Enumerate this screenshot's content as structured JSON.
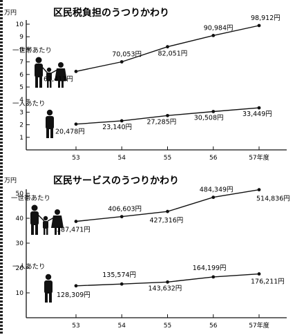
{
  "chart_data": [
    {
      "type": "line",
      "title": "区民税負担のうつりかわり",
      "y_unit": "万円",
      "x_unit_suffix": "年度",
      "categories": [
        "53",
        "54",
        "55",
        "56",
        "57"
      ],
      "ylim": [
        0,
        10
      ],
      "yticks": [
        "1",
        "2",
        "3",
        "4",
        "5",
        "6",
        "7",
        "8",
        "9",
        "10"
      ],
      "series": [
        {
          "name": "一世帯あたり",
          "values": [
            62411,
            70053,
            82051,
            90984,
            98912
          ],
          "labels": [
            "62,411円",
            "70,053円",
            "82,051円",
            "90,984円",
            "98,912円"
          ]
        },
        {
          "name": "一人あたり",
          "values": [
            20478,
            23140,
            27285,
            30508,
            33449
          ],
          "labels": [
            "20,478円",
            "23,140円",
            "27,285円",
            "30,508円",
            "33,449円"
          ]
        }
      ]
    },
    {
      "type": "line",
      "title": "区民サービスのうつりかわり",
      "y_unit": "万円",
      "x_unit_suffix": "年度",
      "categories": [
        "53",
        "54",
        "55",
        "56",
        "57"
      ],
      "ylim": [
        0,
        50
      ],
      "yticks": [
        "10",
        "20",
        "30",
        "40",
        "50"
      ],
      "series": [
        {
          "name": "一世帯あたり",
          "values": [
            387471,
            406603,
            427316,
            484349,
            514836
          ],
          "labels": [
            "387,471円",
            "406,603円",
            "427,316円",
            "484,349円",
            "514,836円"
          ]
        },
        {
          "name": "一人あたり",
          "values": [
            128309,
            135574,
            143632,
            164199,
            176211
          ],
          "labels": [
            "128,309円",
            "135,574円",
            "143,632円",
            "164,199円",
            "176,211円"
          ]
        }
      ]
    }
  ]
}
